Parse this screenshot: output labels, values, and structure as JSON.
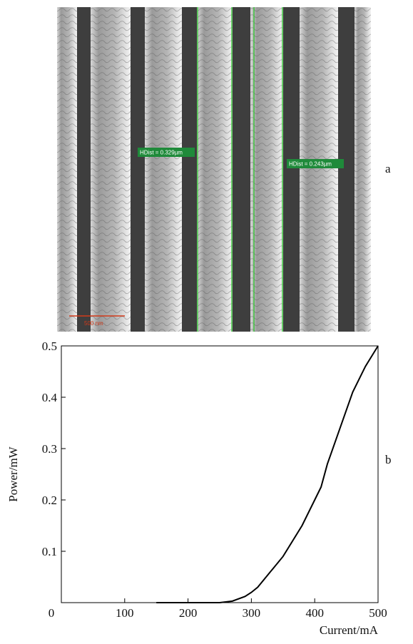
{
  "figure": {
    "panel_labels": [
      "a",
      "b"
    ],
    "image": {
      "annotations": [
        "HDist = 0.329µm",
        "HDist = 0.243µm"
      ],
      "scale_bar": "500 nm"
    }
  },
  "chart_data": {
    "type": "line",
    "xlabel": "Current/mA",
    "ylabel": "Power/mW",
    "color": "#000000",
    "x": [
      150,
      200,
      250,
      270,
      290,
      300,
      310,
      330,
      350,
      380,
      400,
      410,
      420,
      440,
      460,
      480,
      500
    ],
    "values": [
      0,
      0,
      0,
      0.003,
      0.012,
      0.02,
      0.03,
      0.06,
      0.09,
      0.15,
      0.2,
      0.225,
      0.27,
      0.34,
      0.41,
      0.46,
      0.5
    ],
    "xlim": [
      0,
      500
    ],
    "ylim": [
      0,
      0.5
    ],
    "xticks": [
      0,
      100,
      200,
      300,
      400,
      500
    ],
    "yticks": [
      0.1,
      0.2,
      0.3,
      0.4,
      0.5
    ]
  }
}
